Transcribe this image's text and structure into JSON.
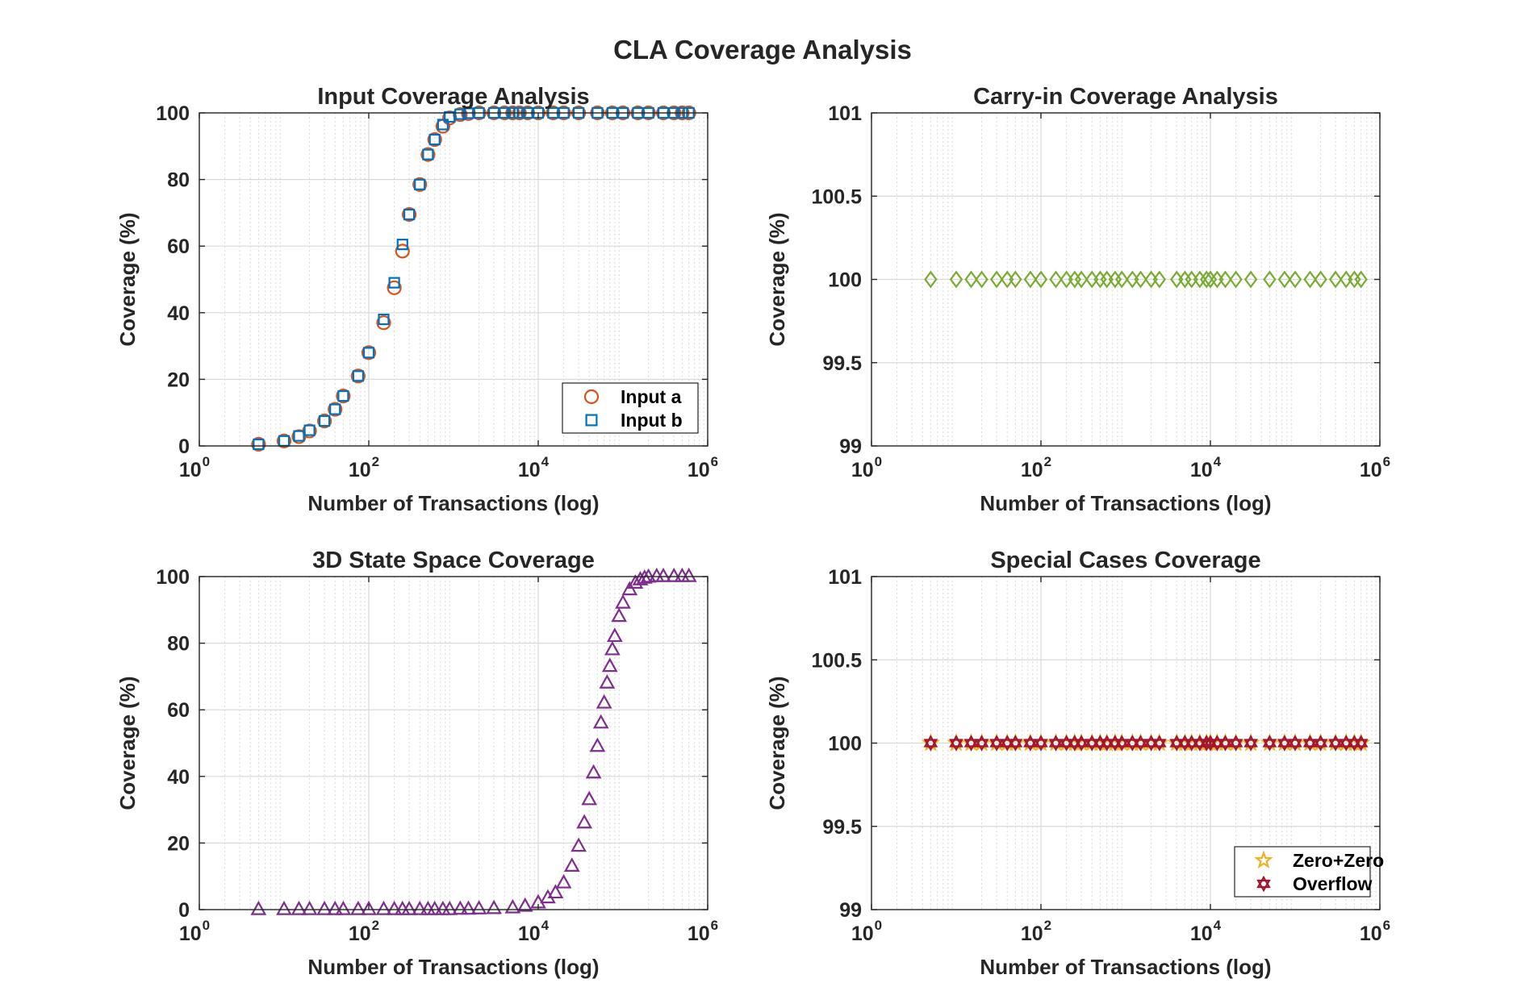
{
  "figure": {
    "title": "CLA Coverage Analysis"
  },
  "colors": {
    "input_a": "#D95319",
    "input_b": "#0072BD",
    "carry": "#77AC30",
    "state": "#7E2F8E",
    "zero": "#EDB120",
    "overflow": "#A2142F",
    "axis": "#262626",
    "grid": "#d9d9d9"
  },
  "chart_data": [
    {
      "id": "input",
      "type": "scatter",
      "title": "Input Coverage Analysis",
      "xlabel": "Number of Transactions (log)",
      "ylabel": "Coverage (%)",
      "xscale": "log",
      "xlim": [
        1,
        1000000
      ],
      "ylim": [
        0,
        100
      ],
      "xticks": [
        1,
        100,
        10000,
        1000000
      ],
      "xtick_labels": [
        [
          "10",
          "0"
        ],
        [
          "10",
          "2"
        ],
        [
          "10",
          "4"
        ],
        [
          "10",
          "6"
        ]
      ],
      "yticks": [
        0,
        20,
        40,
        60,
        80,
        100
      ],
      "ytick_labels": [
        "0",
        "20",
        "40",
        "60",
        "80",
        "100"
      ],
      "grid": true,
      "legend": {
        "position": "bottom-right"
      },
      "series": [
        {
          "name": "Input a",
          "marker": "circle",
          "color": "#D95319",
          "x": [
            5,
            10,
            15,
            20,
            30,
            40,
            50,
            75,
            100,
            150,
            200,
            250,
            300,
            400,
            500,
            600,
            750,
            900,
            1200,
            1500,
            2000,
            3000,
            4000,
            5000,
            6000,
            7500,
            10000,
            15000,
            20000,
            30000,
            50000,
            75000,
            100000,
            150000,
            200000,
            300000,
            400000,
            500000,
            600000
          ],
          "y": [
            0.5,
            1.5,
            2.8,
            4.5,
            7.5,
            11,
            15,
            21,
            28,
            37,
            47.5,
            58.5,
            69.5,
            78.5,
            87.5,
            92,
            96,
            98.5,
            99.5,
            99.8,
            100,
            100,
            100,
            100,
            100,
            100,
            100,
            100,
            100,
            100,
            100,
            100,
            100,
            100,
            100,
            100,
            100,
            100,
            100
          ]
        },
        {
          "name": "Input b",
          "marker": "square",
          "color": "#0072BD",
          "x": [
            5,
            10,
            15,
            20,
            30,
            40,
            50,
            75,
            100,
            150,
            200,
            250,
            300,
            400,
            500,
            600,
            750,
            900,
            1200,
            1500,
            2000,
            3000,
            4000,
            5000,
            6000,
            7500,
            10000,
            15000,
            20000,
            30000,
            50000,
            75000,
            100000,
            150000,
            200000,
            300000,
            400000,
            500000,
            600000
          ],
          "y": [
            0.5,
            1.5,
            3,
            4.7,
            7.5,
            11,
            15,
            21,
            28,
            38,
            49,
            60.5,
            69.5,
            78.5,
            87.5,
            92,
            96.5,
            98.8,
            99.6,
            99.9,
            100,
            100,
            100,
            100,
            100,
            100,
            100,
            100,
            100,
            100,
            100,
            100,
            100,
            100,
            100,
            100,
            100,
            100,
            100
          ]
        }
      ]
    },
    {
      "id": "carry",
      "type": "scatter",
      "title": "Carry-in Coverage Analysis",
      "xlabel": "Number of Transactions (log)",
      "ylabel": "Coverage (%)",
      "xscale": "log",
      "xlim": [
        1,
        1000000
      ],
      "ylim": [
        99,
        101
      ],
      "xticks": [
        1,
        100,
        10000,
        1000000
      ],
      "xtick_labels": [
        [
          "10",
          "0"
        ],
        [
          "10",
          "2"
        ],
        [
          "10",
          "4"
        ],
        [
          "10",
          "6"
        ]
      ],
      "yticks": [
        99,
        99.5,
        100,
        100.5,
        101
      ],
      "ytick_labels": [
        "99",
        "99.5",
        "100",
        "100.5",
        "101"
      ],
      "grid": true,
      "series": [
        {
          "marker": "diamond",
          "color": "#77AC30",
          "x": [
            5,
            10,
            15,
            20,
            30,
            40,
            50,
            75,
            100,
            150,
            200,
            250,
            300,
            400,
            500,
            600,
            750,
            900,
            1200,
            1500,
            2000,
            2500,
            4000,
            5000,
            6000,
            7500,
            9000,
            10000,
            12000,
            15000,
            20000,
            30000,
            50000,
            75000,
            100000,
            150000,
            200000,
            300000,
            400000,
            500000,
            600000
          ],
          "y": [
            100,
            100,
            100,
            100,
            100,
            100,
            100,
            100,
            100,
            100,
            100,
            100,
            100,
            100,
            100,
            100,
            100,
            100,
            100,
            100,
            100,
            100,
            100,
            100,
            100,
            100,
            100,
            100,
            100,
            100,
            100,
            100,
            100,
            100,
            100,
            100,
            100,
            100,
            100,
            100,
            100
          ]
        }
      ]
    },
    {
      "id": "state",
      "type": "scatter",
      "title": "3D State Space Coverage",
      "xlabel": "Number of Transactions (log)",
      "ylabel": "Coverage (%)",
      "xscale": "log",
      "xlim": [
        1,
        1000000
      ],
      "ylim": [
        0,
        100
      ],
      "xticks": [
        1,
        100,
        10000,
        1000000
      ],
      "xtick_labels": [
        [
          "10",
          "0"
        ],
        [
          "10",
          "2"
        ],
        [
          "10",
          "4"
        ],
        [
          "10",
          "6"
        ]
      ],
      "yticks": [
        0,
        20,
        40,
        60,
        80,
        100
      ],
      "ytick_labels": [
        "0",
        "20",
        "40",
        "60",
        "80",
        "100"
      ],
      "grid": true,
      "series": [
        {
          "marker": "triangle",
          "color": "#7E2F8E",
          "x": [
            5,
            10,
            15,
            20,
            30,
            40,
            50,
            75,
            100,
            150,
            200,
            250,
            300,
            400,
            500,
            600,
            750,
            900,
            1200,
            1500,
            2000,
            3000,
            5000,
            7000,
            10000,
            13000,
            16000,
            20000,
            25000,
            30000,
            35000,
            40000,
            45000,
            50000,
            55000,
            60000,
            65000,
            70000,
            75000,
            80000,
            90000,
            100000,
            120000,
            140000,
            160000,
            180000,
            200000,
            250000,
            300000,
            400000,
            500000,
            600000
          ],
          "y": [
            0,
            0,
            0,
            0,
            0,
            0,
            0,
            0,
            0,
            0,
            0,
            0,
            0,
            0,
            0,
            0,
            0,
            0,
            0.1,
            0.1,
            0.2,
            0.3,
            0.5,
            1,
            2,
            3.5,
            5,
            8,
            13,
            19,
            26,
            33,
            41,
            49,
            56,
            62,
            68,
            73,
            78,
            82,
            88,
            92,
            96,
            98,
            99,
            99.5,
            99.8,
            100,
            100,
            100,
            100,
            100
          ]
        }
      ]
    },
    {
      "id": "special",
      "type": "scatter",
      "title": "Special Cases Coverage",
      "xlabel": "Number of Transactions (log)",
      "ylabel": "Coverage (%)",
      "xscale": "log",
      "xlim": [
        1,
        1000000
      ],
      "ylim": [
        99,
        101
      ],
      "xticks": [
        1,
        100,
        10000,
        1000000
      ],
      "xtick_labels": [
        [
          "10",
          "0"
        ],
        [
          "10",
          "2"
        ],
        [
          "10",
          "4"
        ],
        [
          "10",
          "6"
        ]
      ],
      "yticks": [
        99,
        99.5,
        100,
        100.5,
        101
      ],
      "ytick_labels": [
        "99",
        "99.5",
        "100",
        "100.5",
        "101"
      ],
      "grid": true,
      "legend": {
        "position": "bottom-right"
      },
      "series": [
        {
          "name": "Zero+Zero",
          "marker": "star",
          "color": "#EDB120",
          "x": [
            5,
            10,
            15,
            20,
            30,
            40,
            50,
            75,
            100,
            150,
            200,
            250,
            300,
            400,
            500,
            600,
            750,
            900,
            1200,
            1500,
            2000,
            2500,
            4000,
            5000,
            6000,
            7500,
            9000,
            10000,
            12000,
            15000,
            20000,
            30000,
            50000,
            75000,
            100000,
            150000,
            200000,
            300000,
            400000,
            500000,
            600000
          ],
          "y": [
            100,
            100,
            100,
            100,
            100,
            100,
            100,
            100,
            100,
            100,
            100,
            100,
            100,
            100,
            100,
            100,
            100,
            100,
            100,
            100,
            100,
            100,
            100,
            100,
            100,
            100,
            100,
            100,
            100,
            100,
            100,
            100,
            100,
            100,
            100,
            100,
            100,
            100,
            100,
            100,
            100
          ]
        },
        {
          "name": "Overflow",
          "marker": "hexagram",
          "color": "#A2142F",
          "x": [
            5,
            10,
            15,
            20,
            30,
            40,
            50,
            75,
            100,
            150,
            200,
            250,
            300,
            400,
            500,
            600,
            750,
            900,
            1200,
            1500,
            2000,
            2500,
            4000,
            5000,
            6000,
            7500,
            9000,
            10000,
            12000,
            15000,
            20000,
            30000,
            50000,
            75000,
            100000,
            150000,
            200000,
            300000,
            400000,
            500000,
            600000
          ],
          "y": [
            100,
            100,
            100,
            100,
            100,
            100,
            100,
            100,
            100,
            100,
            100,
            100,
            100,
            100,
            100,
            100,
            100,
            100,
            100,
            100,
            100,
            100,
            100,
            100,
            100,
            100,
            100,
            100,
            100,
            100,
            100,
            100,
            100,
            100,
            100,
            100,
            100,
            100,
            100,
            100,
            100
          ]
        }
      ]
    }
  ]
}
